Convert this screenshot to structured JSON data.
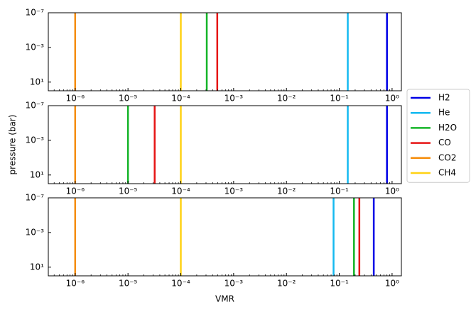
{
  "chart_data": [
    {
      "type": "vline",
      "log_x": true,
      "log_y": true,
      "y_inverted": true,
      "xlim": [
        3.1e-07,
        1.5
      ],
      "ylim": [
        100,
        1e-07
      ],
      "xticks": [
        {
          "value": 1e-06,
          "label": "10⁻⁶"
        },
        {
          "value": 1e-05,
          "label": "10⁻⁵"
        },
        {
          "value": 0.0001,
          "label": "10⁻⁴"
        },
        {
          "value": 0.001,
          "label": "10⁻³"
        },
        {
          "value": 0.01,
          "label": "10⁻²"
        },
        {
          "value": 0.1,
          "label": "10⁻¹"
        },
        {
          "value": 1,
          "label": "10⁰"
        }
      ],
      "yticks": [
        {
          "value": 1e-07,
          "label": "10⁻⁷"
        },
        {
          "value": 0.001,
          "label": "10⁻³"
        },
        {
          "value": 10,
          "label": "10¹"
        }
      ],
      "legend_position": "right",
      "series": [
        {
          "name": "H2",
          "color": "#0000e6",
          "values": [
            0.8
          ]
        },
        {
          "name": "He",
          "color": "#14b9f0",
          "values": [
            0.145
          ]
        },
        {
          "name": "H2O",
          "color": "#14b428",
          "values": [
            0.00031
          ]
        },
        {
          "name": "CO",
          "color": "#e61414",
          "values": [
            0.00049
          ]
        },
        {
          "name": "CO2",
          "color": "#f58c0a",
          "values": [
            1e-06
          ]
        },
        {
          "name": "CH4",
          "color": "#ffd214",
          "values": [
            0.0001
          ]
        }
      ]
    },
    {
      "type": "vline",
      "log_x": true,
      "log_y": true,
      "y_inverted": true,
      "xlim": [
        3.1e-07,
        1.5
      ],
      "ylim": [
        100,
        1e-07
      ],
      "xticks": [
        {
          "value": 1e-06,
          "label": "10⁻⁶"
        },
        {
          "value": 1e-05,
          "label": "10⁻⁵"
        },
        {
          "value": 0.0001,
          "label": "10⁻⁴"
        },
        {
          "value": 0.001,
          "label": "10⁻³"
        },
        {
          "value": 0.01,
          "label": "10⁻²"
        },
        {
          "value": 0.1,
          "label": "10⁻¹"
        },
        {
          "value": 1,
          "label": "10⁰"
        }
      ],
      "yticks": [
        {
          "value": 1e-07,
          "label": "10⁻⁷"
        },
        {
          "value": 0.001,
          "label": "10⁻³"
        },
        {
          "value": 10,
          "label": "10¹"
        }
      ],
      "ylabel": "pressure (bar)",
      "values": [
        0.8,
        0.145,
        1e-05,
        3.2e-05,
        1e-06,
        0.0001
      ]
    },
    {
      "type": "vline",
      "log_x": true,
      "log_y": true,
      "y_inverted": true,
      "xlim": [
        3.1e-07,
        1.5
      ],
      "ylim": [
        100,
        1e-07
      ],
      "xticks": [
        {
          "value": 1e-06,
          "label": "10⁻⁶"
        },
        {
          "value": 1e-05,
          "label": "10⁻⁵"
        },
        {
          "value": 0.0001,
          "label": "10⁻⁴"
        },
        {
          "value": 0.001,
          "label": "10⁻³"
        },
        {
          "value": 0.01,
          "label": "10⁻²"
        },
        {
          "value": 0.1,
          "label": "10⁻¹"
        },
        {
          "value": 1,
          "label": "10⁰"
        }
      ],
      "yticks": [
        {
          "value": 1e-07,
          "label": "10⁻⁷"
        },
        {
          "value": 0.001,
          "label": "10⁻³"
        },
        {
          "value": 10,
          "label": "10¹"
        }
      ],
      "xlabel": "VMR",
      "values": [
        0.45,
        0.078,
        0.19,
        0.24,
        1e-06,
        0.0001
      ]
    }
  ]
}
